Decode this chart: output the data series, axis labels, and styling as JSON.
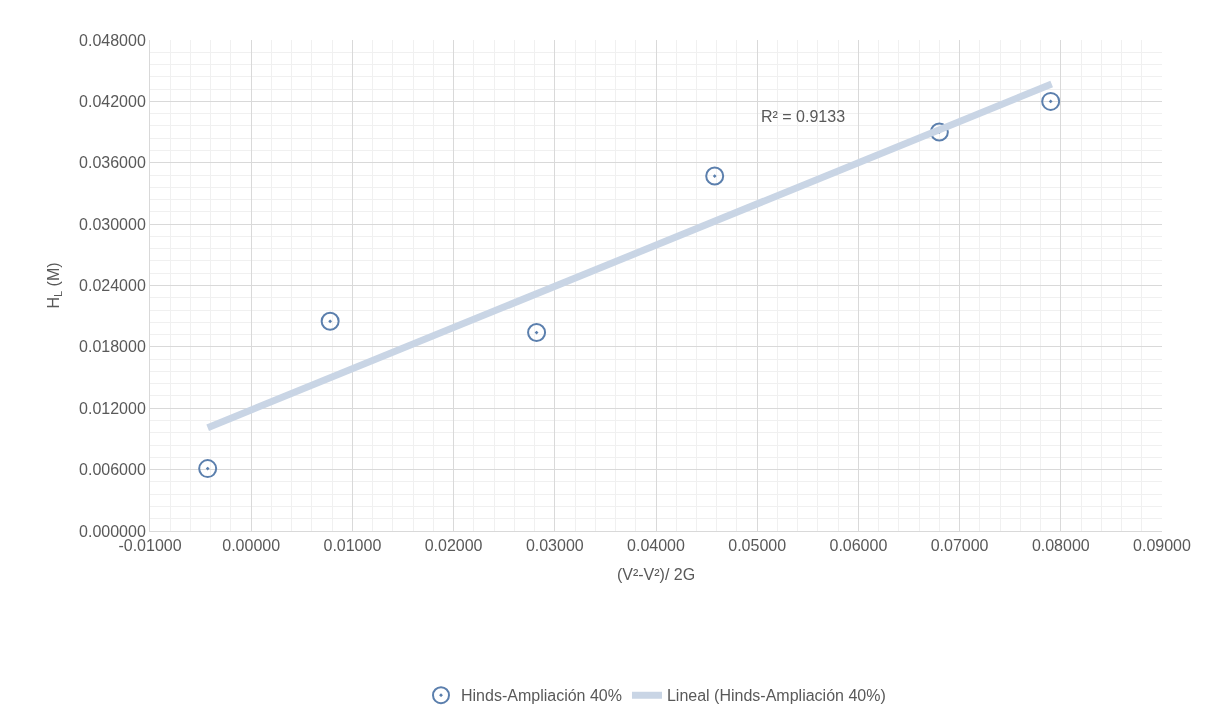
{
  "chart_data": {
    "type": "scatter",
    "xlabel": "(V²-V²)/ 2G",
    "ylabel": "H$_{L}$ (M)",
    "series": [
      {
        "name": "Hinds-Ampliación 40%",
        "color": "#5b7fad",
        "marker": "circle",
        "x": [
          -0.0043,
          0.0078,
          0.0282,
          0.0458,
          0.068,
          0.079
        ],
        "values": [
          0.0061,
          0.0205,
          0.0194,
          0.0347,
          0.039,
          0.042
        ]
      },
      {
        "name": "Lineal (Hinds-Ampliación 40%)",
        "type": "line",
        "color": "#c9d5e5",
        "line_style": "solid",
        "x": [
          -0.0043,
          0.0791
        ],
        "values": [
          0.0101,
          0.0437
        ]
      }
    ],
    "annotations": [
      "R² = 0.9133"
    ],
    "xlim": [
      -0.01,
      0.09
    ],
    "xticks": [
      {
        "value": -0.01,
        "label": "-0.01000"
      },
      {
        "value": 0,
        "label": "0.00000"
      },
      {
        "value": 0.01,
        "label": "0.01000"
      },
      {
        "value": 0.02,
        "label": "0.02000"
      },
      {
        "value": 0.03,
        "label": "0.03000"
      },
      {
        "value": 0.04,
        "label": "0.04000"
      },
      {
        "value": 0.05,
        "label": "0.05000"
      },
      {
        "value": 0.06,
        "label": "0.06000"
      },
      {
        "value": 0.07,
        "label": "0.07000"
      },
      {
        "value": 0.08,
        "label": "0.08000"
      },
      {
        "value": 0.09,
        "label": "0.09000"
      }
    ],
    "ylim": [
      0,
      0.048
    ],
    "yticks": [
      {
        "value": 0,
        "label": "0.000000"
      },
      {
        "value": 0.006,
        "label": "0.006000"
      },
      {
        "value": 0.012,
        "label": "0.012000"
      },
      {
        "value": 0.018,
        "label": "0.018000"
      },
      {
        "value": 0.024,
        "label": "0.024000"
      },
      {
        "value": 0.03,
        "label": "0.030000"
      },
      {
        "value": 0.036,
        "label": "0.036000"
      },
      {
        "value": 0.042,
        "label": "0.042000"
      },
      {
        "value": 0.048,
        "label": "0.048000"
      }
    ],
    "grid": true,
    "legend": "bottom"
  }
}
